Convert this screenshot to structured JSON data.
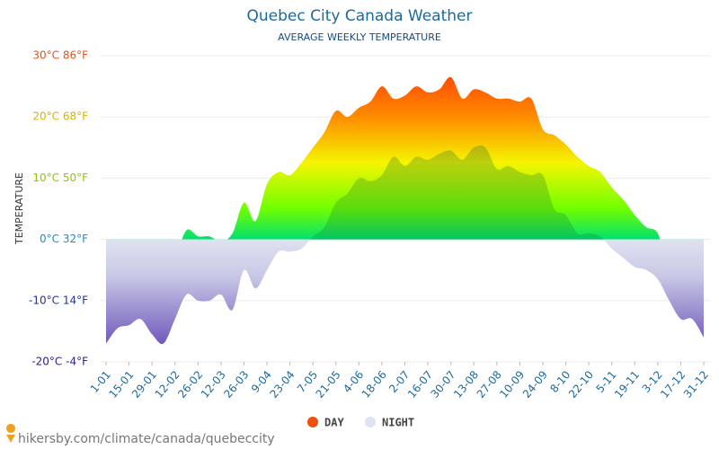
{
  "chart_data": {
    "type": "area",
    "title": "Quebec City Canada Weather",
    "subtitle": "AVERAGE WEEKLY TEMPERATURE",
    "y_axis_label": "TEMPERATURE",
    "source": "hikersby.com/climate/canada/quebeccity",
    "categories": [
      "1-01",
      null,
      "15-01",
      null,
      "29-01",
      null,
      "12-02",
      null,
      "26-02",
      null,
      "12-03",
      null,
      "26-03",
      null,
      "9-04",
      null,
      "23-04",
      null,
      "7-05",
      null,
      "21-05",
      null,
      "4-06",
      null,
      "18-06",
      null,
      "2-07",
      null,
      "16-07",
      null,
      "30-07",
      null,
      "13-08",
      null,
      "27-08",
      null,
      "10-09",
      null,
      "24-09",
      null,
      "8-10",
      null,
      "22-10",
      null,
      "5-11",
      null,
      "19-11",
      null,
      "3-12",
      null,
      "17-12",
      null,
      "31-12"
    ],
    "series": [
      {
        "name": "DAY",
        "color": "#f24e0c",
        "values": [
          -8,
          -3.5,
          -5,
          -3,
          -4.5,
          -5.5,
          -3,
          1.5,
          0.5,
          0.5,
          -0.3,
          1,
          6,
          3,
          9,
          11,
          10.5,
          12.5,
          15,
          17.5,
          21,
          20,
          21.5,
          22.5,
          25,
          23,
          23.5,
          25,
          24,
          24.5,
          26.5,
          23,
          24.5,
          24,
          23,
          23,
          22.5,
          23,
          18,
          17,
          15.5,
          13.5,
          12,
          11,
          8.5,
          6.5,
          4,
          2,
          1,
          -4.5,
          -4.5,
          -5,
          -8.5
        ]
      },
      {
        "name": "NIGHT",
        "color": "#dfe2f0",
        "values": [
          -17,
          -14.5,
          -14,
          -13,
          -15.5,
          -17,
          -13,
          -9,
          -10,
          -10,
          -9,
          -11.5,
          -5,
          -8,
          -5,
          -2,
          -2,
          -1.5,
          0.5,
          2,
          6,
          7.5,
          10,
          9.5,
          10.5,
          13.5,
          12,
          13.5,
          13,
          14,
          14.5,
          13,
          15,
          15,
          11.5,
          12,
          11,
          10.5,
          10.5,
          5,
          4,
          1,
          1,
          0.5,
          -1.5,
          -3,
          -4.5,
          -5,
          -6.5,
          -10,
          -13,
          -13,
          -16
        ]
      }
    ],
    "ylim": [
      -20,
      30
    ],
    "yticks": [
      {
        "value": -20,
        "label": "-20°C -4°F"
      },
      {
        "value": -10,
        "label": "-10°C 14°F"
      },
      {
        "value": 0,
        "label": "0°C 32°F"
      },
      {
        "value": 10,
        "label": "10°C 50°F"
      },
      {
        "value": 20,
        "label": "20°C 68°F"
      },
      {
        "value": 30,
        "label": "30°C 86°F"
      }
    ],
    "ytick_colors": [
      "#2a1f8f",
      "#23309e",
      "#1a8fc8",
      "#8cc800",
      "#d6b400",
      "#e8501a"
    ],
    "grid": true
  }
}
